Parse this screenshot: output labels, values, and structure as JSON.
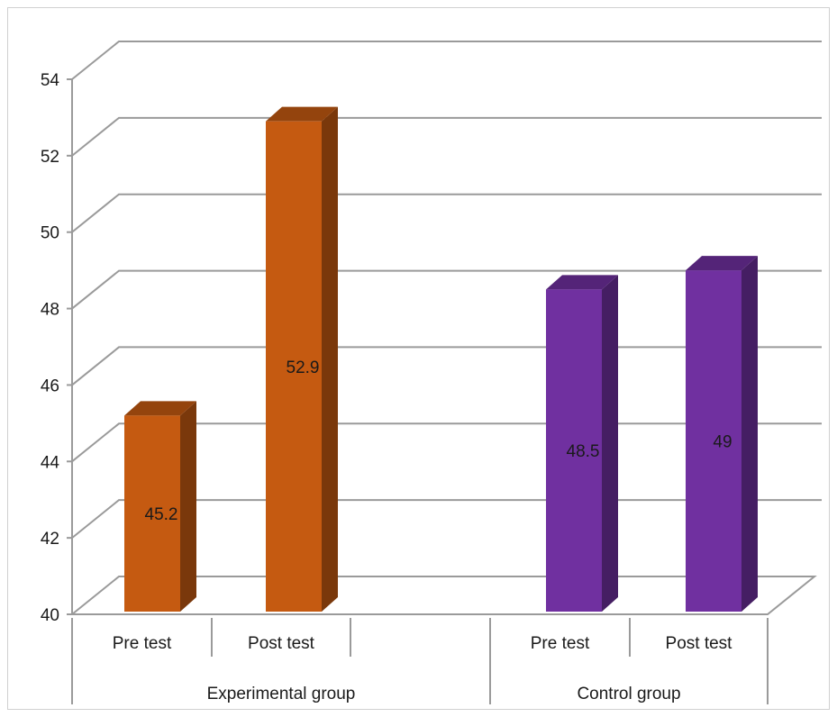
{
  "chart_data": {
    "type": "bar",
    "title": "",
    "xlabel": "",
    "ylabel": "",
    "ylim": [
      40,
      54
    ],
    "yticks": [
      40,
      42,
      44,
      46,
      48,
      50,
      52,
      54
    ],
    "grid": true,
    "style": "3d-column",
    "groups": [
      {
        "name": "Experimental group",
        "color": "#c55a11",
        "categories": [
          "Pre test",
          "Post test"
        ]
      },
      {
        "name": "Control group",
        "color": "#7030a0",
        "categories": [
          "Pre test",
          "Post test"
        ]
      }
    ],
    "categories": [
      "Pre test",
      "Post test",
      "Pre test",
      "Post test"
    ],
    "values": [
      45.2,
      52.9,
      48.5,
      49
    ],
    "data_labels": [
      "45.2",
      "52.9",
      "48.5",
      "49"
    ],
    "legend": "none"
  }
}
